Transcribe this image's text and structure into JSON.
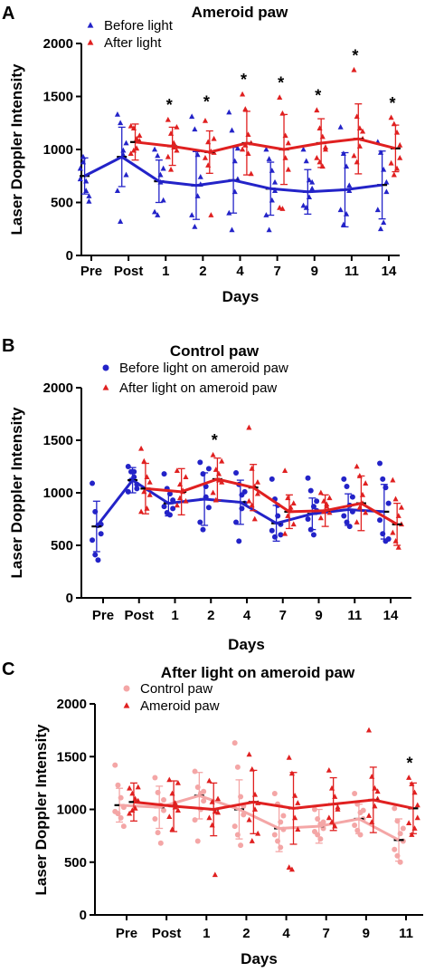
{
  "chart_data": [
    {
      "panel": "A",
      "type": "scatter",
      "title": "Ameroid paw",
      "xlabel": "Days",
      "ylabel": "Laser Doppler Intensity",
      "categories": [
        "Pre",
        "Post",
        "1",
        "2",
        "4",
        "7",
        "9",
        "11",
        "14"
      ],
      "ylim": [
        0,
        2000
      ],
      "yticks": [
        "0",
        "500",
        "1000",
        "1500",
        "2000"
      ],
      "legend_position": "top-left",
      "significance_markers": [
        "1",
        "2",
        "4",
        "7",
        "9",
        "11",
        "14"
      ],
      "significance_symbol": "*",
      "series": [
        {
          "name": "Before light",
          "marker": "triangle",
          "color": "#2323c8",
          "means": [
            750,
            930,
            700,
            660,
            710,
            630,
            600,
            620,
            665
          ],
          "sd": [
            170,
            280,
            200,
            320,
            310,
            250,
            210,
            350,
            320
          ],
          "points": [
            [
              720,
              880,
              610,
              510,
              820,
              930,
              700,
              560
            ],
            [
              1330,
              1250,
              990,
              760,
              610,
              320,
              950,
              1060
            ],
            [
              1000,
              940,
              760,
              520,
              410,
              380,
              690,
              820
            ],
            [
              1310,
              1190,
              950,
              670,
              380,
              270,
              560,
              740
            ],
            [
              1350,
              1180,
              890,
              720,
              400,
              240,
              600,
              1010
            ],
            [
              1000,
              910,
              800,
              610,
              380,
              240,
              520,
              690
            ],
            [
              1000,
              890,
              710,
              630,
              470,
              450,
              550,
              690
            ],
            [
              1210,
              960,
              840,
              660,
              430,
              290,
              390,
              610
            ],
            [
              1070,
              970,
              810,
              600,
              430,
              250,
              310,
              690
            ]
          ]
        },
        {
          "name": "After light",
          "marker": "triangle",
          "color": "#e02020",
          "means": [
            null,
            1070,
            1030,
            975,
            1060,
            1000,
            1060,
            1100,
            1010
          ],
          "sd": [
            null,
            170,
            180,
            200,
            300,
            330,
            230,
            330,
            220
          ],
          "points": [
            null,
            [
              1220,
              1200,
              1100,
              1080,
              960,
              990,
              1010,
              1130
            ],
            [
              1280,
              1150,
              1060,
              990,
              930,
              810,
              1020,
              1210
            ],
            [
              1270,
              1070,
              980,
              970,
              920,
              850,
              380,
              1100
            ],
            [
              1520,
              1380,
              1140,
              1060,
              1000,
              1040,
              960,
              770
            ],
            [
              1490,
              1340,
              1130,
              810,
              450,
              440,
              920,
              1060
            ],
            [
              1370,
              1200,
              1120,
              1000,
              920,
              880,
              840,
              1020
            ],
            [
              1750,
              1310,
              1200,
              1100,
              940,
              880,
              1030,
              1170
            ],
            [
              1300,
              1240,
              1160,
              1040,
              870,
              760,
              820,
              920
            ]
          ]
        }
      ]
    },
    {
      "panel": "B",
      "type": "scatter",
      "title": "Control paw",
      "xlabel": "Days",
      "ylabel": "Laser Doppler Intensity",
      "categories": [
        "Pre",
        "Post",
        "1",
        "2",
        "4",
        "7",
        "9",
        "11",
        "14"
      ],
      "ylim": [
        0,
        2000
      ],
      "yticks": [
        "0",
        "500",
        "1000",
        "1500",
        "2000"
      ],
      "legend_position": "top-left",
      "significance_markers": [
        "2"
      ],
      "significance_symbol": "*",
      "series": [
        {
          "name": "Before light on ameroid paw",
          "marker": "circle",
          "color": "#2323c8",
          "means": [
            680,
            1120,
            900,
            940,
            910,
            710,
            800,
            840,
            820
          ],
          "sd": [
            240,
            120,
            120,
            250,
            210,
            170,
            150,
            150,
            260
          ],
          "points": [
            [
              1090,
              820,
              690,
              610,
              550,
              410,
              360,
              700
            ],
            [
              1250,
              1200,
              1150,
              1080,
              1010,
              1120,
              1200,
              1040
            ],
            [
              1180,
              1040,
              990,
              930,
              870,
              810,
              790,
              850
            ],
            [
              1290,
              1180,
              1060,
              860,
              720,
              650,
              960,
              1230
            ],
            [
              1190,
              1080,
              980,
              900,
              720,
              540,
              850,
              1010
            ],
            [
              1130,
              940,
              780,
              700,
              640,
              580,
              880,
              600
            ],
            [
              1140,
              1020,
              870,
              830,
              750,
              650,
              600,
              920
            ],
            [
              1130,
              1060,
              880,
              820,
              780,
              720,
              680,
              960
            ],
            [
              1280,
              1130,
              1050,
              900,
              740,
              610,
              540,
              560
            ]
          ]
        },
        {
          "name": "After light on ameroid paw",
          "marker": "triangle",
          "color": "#e02020",
          "means": [
            null,
            1040,
            1010,
            1130,
            1050,
            820,
            830,
            900,
            700
          ],
          "sd": [
            null,
            240,
            220,
            200,
            220,
            160,
            150,
            260,
            200
          ],
          "points": [
            null,
            [
              1420,
              1300,
              1150,
              980,
              820,
              1010,
              850,
              1100
            ],
            [
              1210,
              1080,
              1010,
              920,
              880,
              950,
              1020,
              1150
            ],
            [
              1360,
              1220,
              1180,
              1100,
              1000,
              930,
              1120,
              1300
            ],
            [
              1620,
              1230,
              1060,
              990,
              920,
              880,
              750,
              1100
            ],
            [
              1210,
              950,
              830,
              700,
              610,
              780,
              860,
              900
            ],
            [
              1000,
              920,
              870,
              810,
              760,
              820,
              890,
              950
            ],
            [
              1250,
              1160,
              900,
              810,
              720,
              860,
              980,
              1090
            ],
            [
              1120,
              940,
              780,
              700,
              620,
              540,
              480,
              860
            ]
          ]
        }
      ]
    },
    {
      "panel": "C",
      "type": "scatter",
      "title": "After light on ameroid paw",
      "xlabel": "Days",
      "ylabel": "Laser Doppler Intensity",
      "categories": [
        "Pre",
        "Post",
        "1",
        "2",
        "4",
        "7",
        "9",
        "11"
      ],
      "ylim": [
        0,
        2000
      ],
      "yticks": [
        "0",
        "500",
        "1000",
        "1500",
        "2000"
      ],
      "legend_position": "top-left",
      "significance_markers": [
        "11"
      ],
      "significance_symbol": "*",
      "series": [
        {
          "name": "Control paw",
          "marker": "circle",
          "color": "#f4a6a6",
          "means": [
            1040,
            1020,
            1130,
            1000,
            820,
            840,
            910,
            710
          ],
          "sd": [
            160,
            200,
            220,
            280,
            220,
            160,
            140,
            200
          ],
          "points": [
            [
              1420,
              1230,
              1110,
              1020,
              980,
              960,
              920,
              840
            ],
            [
              1300,
              1160,
              1040,
              990,
              910,
              780,
              680,
              1090
            ],
            [
              1360,
              1210,
              1150,
              1080,
              900,
              700,
              1000,
              1170
            ],
            [
              1630,
              1400,
              1120,
              950,
              840,
              760,
              660,
              1030
            ],
            [
              1150,
              1050,
              880,
              810,
              760,
              700,
              640,
              940
            ],
            [
              1000,
              910,
              860,
              820,
              790,
              760,
              720,
              880
            ],
            [
              1150,
              1050,
              970,
              910,
              850,
              800,
              760,
              990
            ],
            [
              1010,
              890,
              770,
              700,
              620,
              560,
              500,
              820
            ]
          ]
        },
        {
          "name": "Ameroid paw",
          "marker": "triangle",
          "color": "#e02020",
          "means": [
            1070,
            1030,
            1000,
            1070,
            1010,
            1050,
            1090,
            1010
          ],
          "sd": [
            180,
            240,
            250,
            300,
            340,
            250,
            310,
            240
          ],
          "points": [
            [
              1200,
              1150,
              1100,
              1080,
              960,
              990,
              1010,
              1210
            ],
            [
              1280,
              1150,
              1060,
              990,
              930,
              810,
              1020,
              1250
            ],
            [
              1270,
              1070,
              980,
              970,
              920,
              850,
              380,
              1100
            ],
            [
              1520,
              1380,
              1140,
              1060,
              900,
              700,
              1000,
              770
            ],
            [
              1490,
              1340,
              1130,
              810,
              450,
              430,
              920,
              1060
            ],
            [
              1370,
              1200,
              1120,
              1000,
              920,
              880,
              840,
              1020
            ],
            [
              1750,
              1310,
              1200,
              1100,
              940,
              880,
              1030,
              1170
            ],
            [
              1300,
              1240,
              1160,
              1040,
              870,
              760,
              820,
              920
            ]
          ]
        }
      ]
    }
  ]
}
